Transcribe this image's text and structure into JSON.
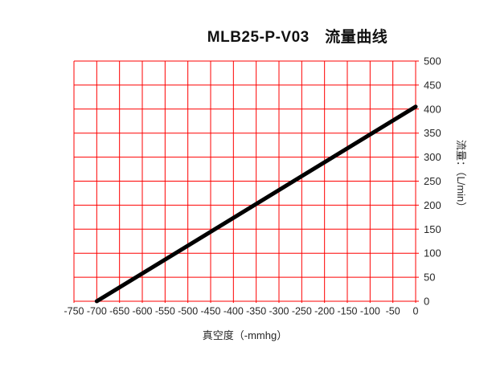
{
  "title": "MLB25-P-V03　流量曲线",
  "x_axis": {
    "title": "真空度（-mmhg）"
  },
  "y_axis": {
    "title": "流量：（L/min）"
  },
  "colors": {
    "grid": "#fe0000",
    "curve": "#000000",
    "tick_text": "#262626",
    "background": "#ffffff"
  },
  "chart_data": {
    "type": "line",
    "title": "MLB25-P-V03　流量曲线",
    "xlabel": "真空度（-mmhg）",
    "ylabel": "流量：（L/min）",
    "xlim": [
      -750,
      0
    ],
    "ylim": [
      0,
      500
    ],
    "x_ticks": [
      -750,
      -700,
      -650,
      -600,
      -550,
      -500,
      -450,
      -400,
      -350,
      -300,
      -250,
      -200,
      -150,
      -100,
      -50,
      0
    ],
    "y_ticks": [
      0,
      50,
      100,
      150,
      200,
      250,
      300,
      350,
      400,
      450,
      500
    ],
    "grid": true,
    "grid_color": "#fe0000",
    "legend": "none",
    "series": [
      {
        "name": "流量",
        "color": "#000000",
        "x": [
          -700,
          0
        ],
        "y": [
          0,
          405
        ]
      }
    ]
  }
}
